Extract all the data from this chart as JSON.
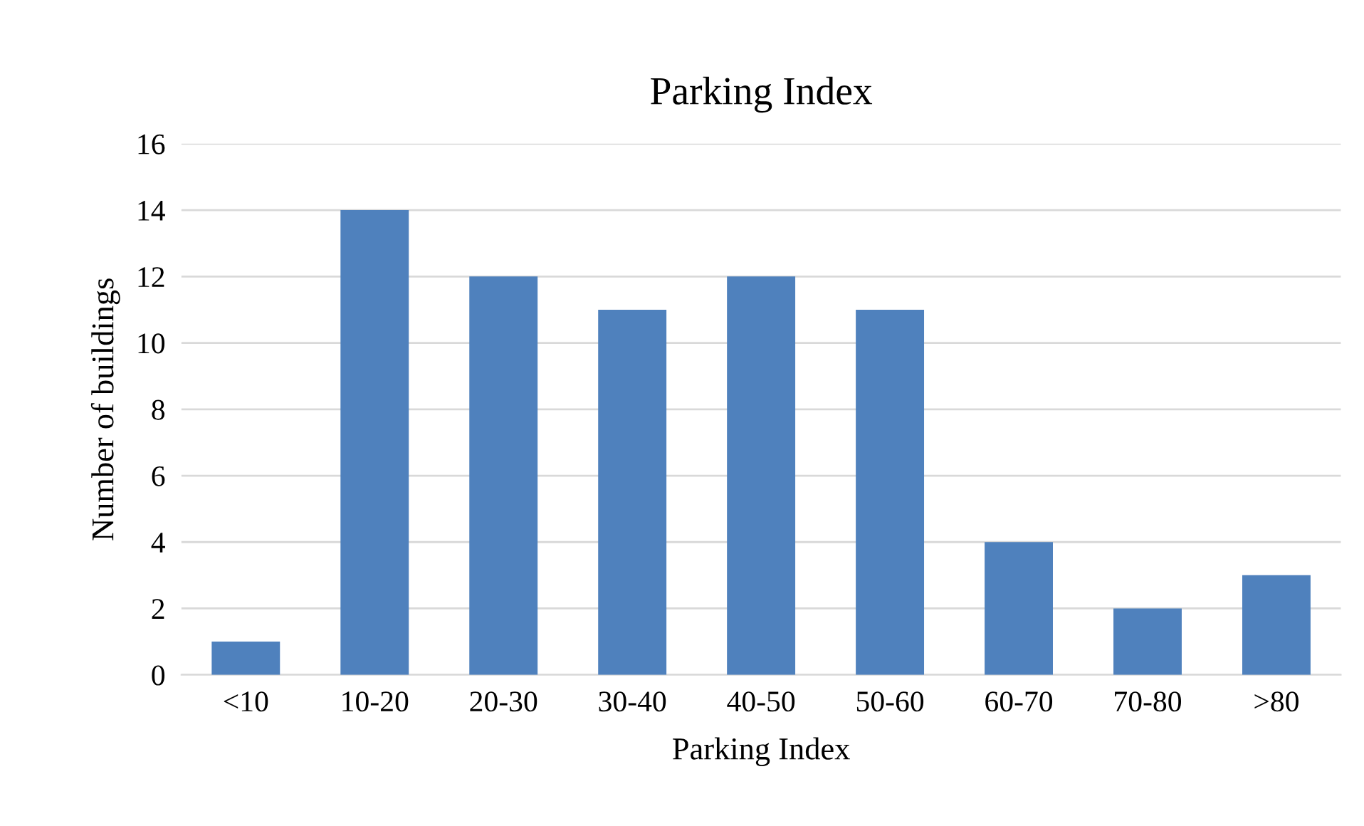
{
  "chart_data": {
    "type": "bar",
    "title": "Parking Index",
    "xlabel": "Parking Index",
    "ylabel": "Number of buildings",
    "categories": [
      "<10",
      "10-20",
      "20-30",
      "30-40",
      "40-50",
      "50-60",
      "60-70",
      "70-80",
      ">80"
    ],
    "values": [
      1,
      14,
      12,
      11,
      12,
      11,
      4,
      2,
      3
    ],
    "color": "#4f81bd",
    "ylim": [
      0,
      16
    ],
    "yticks": [
      0,
      2,
      4,
      6,
      8,
      10,
      12,
      14,
      16
    ],
    "grid": "y"
  }
}
